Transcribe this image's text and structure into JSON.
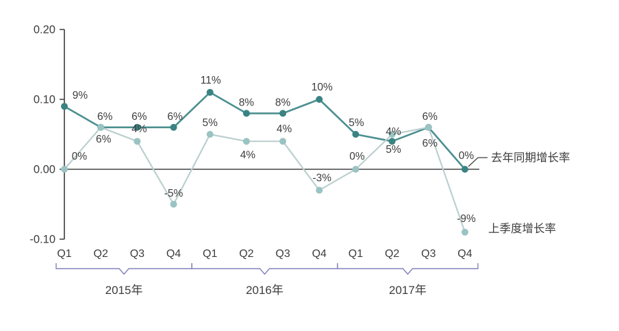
{
  "chart_data": {
    "type": "line",
    "title": "",
    "grid": "off",
    "background": "#ffffff",
    "categories": [
      "Q1",
      "Q2",
      "Q3",
      "Q4",
      "Q1",
      "Q2",
      "Q3",
      "Q4",
      "Q1",
      "Q2",
      "Q3",
      "Q4"
    ],
    "year_groups": [
      {
        "label": "2015年",
        "from": 0,
        "to": 3
      },
      {
        "label": "2016年",
        "from": 4,
        "to": 7
      },
      {
        "label": "2017年",
        "from": 8,
        "to": 11
      }
    ],
    "y_axis": {
      "tick_labels": [
        "0.20",
        "0.10",
        "0.00",
        "-0.10"
      ],
      "tick_values": [
        0.2,
        0.1,
        0.0,
        -0.1
      ],
      "range": [
        -0.1,
        0.2
      ]
    },
    "series": [
      {
        "name": "去年同期增长率",
        "line_color": "#4b8f8f",
        "marker_color": "#3a8383",
        "values_pct": [
          9,
          6,
          6,
          6,
          11,
          8,
          8,
          10,
          5,
          4,
          6,
          0
        ],
        "labels": [
          "9%",
          "6%",
          "6%",
          "6%",
          "11%",
          "8%",
          "8%",
          "10%",
          "5%",
          "4%",
          "6%",
          "0%"
        ]
      },
      {
        "name": "上季度增长率",
        "line_color": "#bccfcf",
        "marker_color": "#9ac3c3",
        "values_pct": [
          0,
          6,
          4,
          -5,
          5,
          4,
          4,
          -3,
          0,
          5,
          6,
          -9
        ],
        "labels": [
          "0%",
          "6%",
          "4%",
          "-5%",
          "5%",
          "4%",
          "4%",
          "-3%",
          "0%",
          "5%",
          "6%",
          "-9%"
        ]
      }
    ],
    "label_offsets": {
      "series0": [
        [
          23,
          -16
        ],
        [
          6,
          -16
        ],
        [
          3,
          -16
        ],
        [
          2,
          -16
        ],
        [
          1,
          -18
        ],
        [
          0,
          -16
        ],
        [
          0,
          -16
        ],
        [
          4,
          -18
        ],
        [
          1,
          -17
        ],
        [
          2,
          -14
        ],
        [
          2,
          -16
        ],
        [
          2,
          -20
        ]
      ],
      "series1": [
        [
          22,
          -19
        ],
        [
          4,
          17
        ],
        [
          3,
          -18
        ],
        [
          0,
          -16
        ],
        [
          0,
          -17
        ],
        [
          2,
          20
        ],
        [
          2,
          -18
        ],
        [
          4,
          -18
        ],
        [
          2,
          -19
        ],
        [
          2,
          22
        ],
        [
          2,
          23
        ],
        [
          2,
          -20
        ]
      ]
    },
    "legend": {
      "position": "right-of-last-points",
      "items": [
        {
          "label": "去年同期增长率",
          "series": 0,
          "connector": true
        },
        {
          "label": "上季度增长率",
          "series": 1,
          "connector": false
        }
      ]
    },
    "colors": {
      "axis": "#2e2e2e",
      "zero_line": "#1f1f1f",
      "bracket": "#8282bd",
      "text": "#3c3c3c"
    }
  }
}
